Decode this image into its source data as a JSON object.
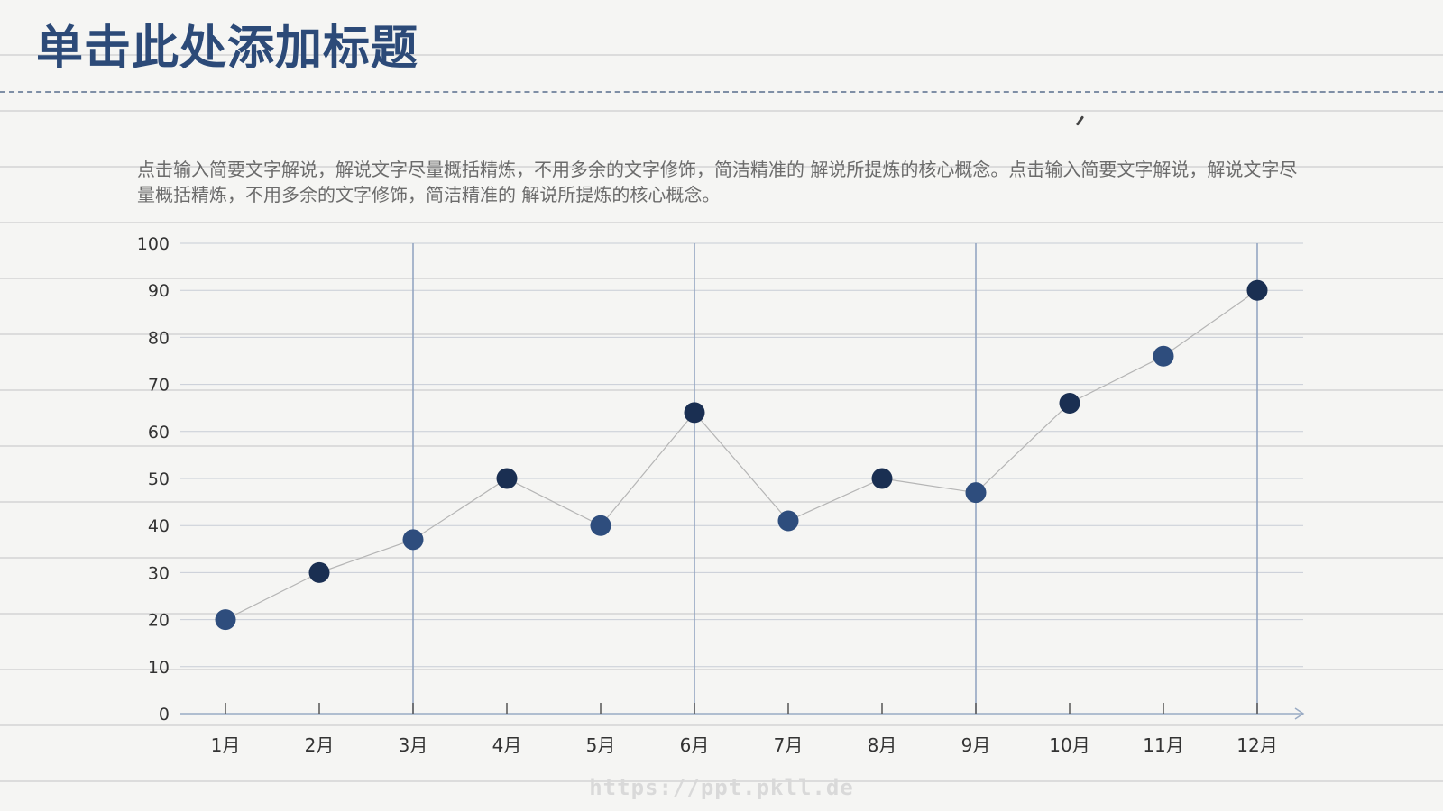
{
  "slide": {
    "title": "单击此处添加标题",
    "summary": "点击输入简要文字解说，解说文字尽量概括精炼，不用多余的文字修饰，简洁精准的 解说所提炼的核心概念。点击输入简要文字解说，解说文字尽量概括精炼，不用多余的文字修饰，简洁精准的 解说所提炼的核心概念。",
    "watermark": "https://ppt.pkll.de"
  },
  "colors": {
    "title": "#2c4a78",
    "marker_light": "#2e4d7d",
    "marker_dark": "#1a2f52",
    "gridline": "#c8cdd6",
    "highlight_line": "#8fa2bf",
    "connector": "#b5b5b5",
    "axis": "#9aabc4"
  },
  "chart_data": {
    "type": "line",
    "title": "",
    "xlabel": "",
    "ylabel": "",
    "categories": [
      "1月",
      "2月",
      "3月",
      "4月",
      "5月",
      "6月",
      "7月",
      "8月",
      "9月",
      "10月",
      "11月",
      "12月"
    ],
    "series": [
      {
        "values": [
          20,
          30,
          37,
          50,
          40,
          64,
          41,
          50,
          47,
          66,
          76,
          90
        ]
      }
    ],
    "ylim": [
      0,
      100
    ],
    "yticks": [
      0,
      10,
      20,
      30,
      40,
      50,
      60,
      70,
      80,
      90,
      100
    ],
    "highlighted_categories": [
      "3月",
      "6月",
      "9月",
      "12月"
    ],
    "grid": true,
    "legend": "none"
  }
}
